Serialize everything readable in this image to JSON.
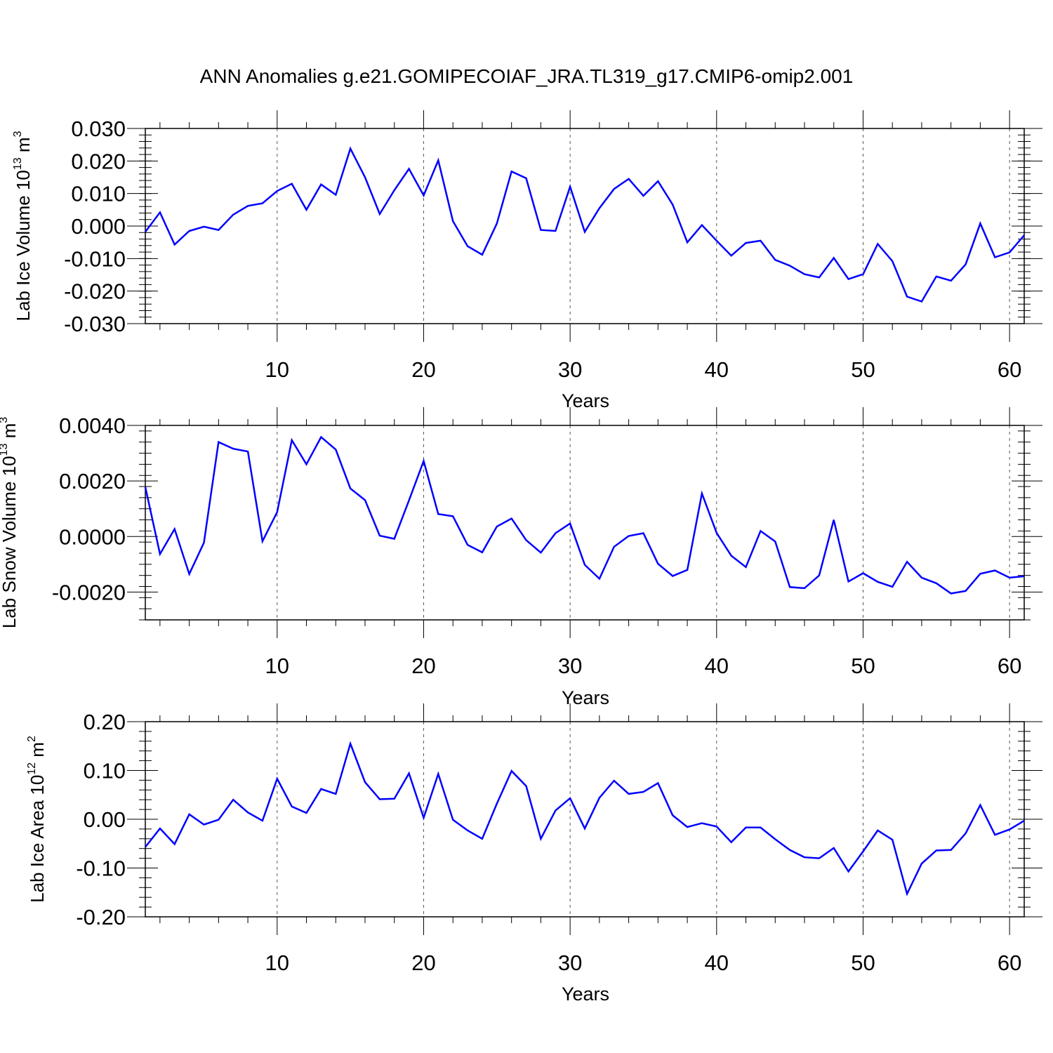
{
  "title": "ANN Anomalies g.e21.GOMIPECOIAF_JRA.TL319_g17.CMIP6-omip2.001",
  "colors": {
    "line": "#0000ff",
    "axis": "#000000",
    "grid": "#555555"
  },
  "chart_data": [
    {
      "type": "line",
      "ylabel_main": "Lab Ice Volume 10",
      "ylabel_exp": "13",
      "ylabel_unit": "m",
      "ylabel_unit_exp": "3",
      "xlabel": "Years",
      "xlim": [
        1,
        61
      ],
      "ylim": [
        -0.03,
        0.03
      ],
      "yticks": [
        -0.03,
        -0.02,
        -0.01,
        0.0,
        0.01,
        0.02,
        0.03
      ],
      "ytick_labels": [
        "-0.030",
        "-0.020",
        "-0.010",
        "0.000",
        "0.010",
        "0.020",
        "0.030"
      ],
      "xticks": [
        10,
        20,
        30,
        40,
        50,
        60
      ],
      "xtick_labels": [
        "10",
        "20",
        "30",
        "40",
        "50",
        "60"
      ],
      "grid": "dashed vertical at x ticks",
      "x": [
        1,
        2,
        3,
        4,
        5,
        6,
        7,
        8,
        9,
        10,
        11,
        12,
        13,
        14,
        15,
        16,
        17,
        18,
        19,
        20,
        21,
        22,
        23,
        24,
        25,
        26,
        27,
        28,
        29,
        30,
        31,
        32,
        33,
        34,
        35,
        36,
        37,
        38,
        39,
        40,
        41,
        42,
        43,
        44,
        45,
        46,
        47,
        48,
        49,
        50,
        51,
        52,
        53,
        54,
        55,
        56,
        57,
        58,
        59,
        60,
        61
      ],
      "series": [
        {
          "values": [
            -0.0018,
            0.0042,
            -0.0057,
            -0.0015,
            -0.0002,
            -0.0012,
            0.0035,
            0.0062,
            0.007,
            0.0108,
            0.013,
            0.005,
            0.0128,
            0.0096,
            0.0238,
            0.015,
            0.0037,
            0.011,
            0.0176,
            0.0094,
            0.0202,
            0.0015,
            -0.0062,
            -0.0088,
            0.0008,
            0.0168,
            0.0147,
            -0.0012,
            -0.0015,
            0.0121,
            -0.0018,
            0.0055,
            0.0114,
            0.0145,
            0.0093,
            0.0138,
            0.0066,
            -0.005,
            0.0003,
            -0.0045,
            -0.0091,
            -0.0052,
            -0.0045,
            -0.0104,
            -0.0122,
            -0.0148,
            -0.0158,
            -0.0098,
            -0.0163,
            -0.0148,
            -0.0055,
            -0.0108,
            -0.0217,
            -0.0232,
            -0.0155,
            -0.0168,
            -0.0118,
            0.0008,
            -0.0096,
            -0.0081,
            -0.0028
          ]
        }
      ]
    },
    {
      "type": "line",
      "ylabel_main": "Lab Snow Volume 10",
      "ylabel_exp": "13",
      "ylabel_unit": "m",
      "ylabel_unit_exp": "3",
      "xlabel": "Years",
      "xlim": [
        1,
        61
      ],
      "ylim": [
        -0.003,
        0.004
      ],
      "yticks": [
        -0.002,
        0.0,
        0.002,
        0.004
      ],
      "ytick_labels": [
        "-0.0020",
        "0.0000",
        "0.0020",
        "0.0040"
      ],
      "xticks": [
        10,
        20,
        30,
        40,
        50,
        60
      ],
      "xtick_labels": [
        "10",
        "20",
        "30",
        "40",
        "50",
        "60"
      ],
      "grid": "dashed vertical at x ticks",
      "x": [
        1,
        2,
        3,
        4,
        5,
        6,
        7,
        8,
        9,
        10,
        11,
        12,
        13,
        14,
        15,
        16,
        17,
        18,
        19,
        20,
        21,
        22,
        23,
        24,
        25,
        26,
        27,
        28,
        29,
        30,
        31,
        32,
        33,
        34,
        35,
        36,
        37,
        38,
        39,
        40,
        41,
        42,
        43,
        44,
        45,
        46,
        47,
        48,
        49,
        50,
        51,
        52,
        53,
        54,
        55,
        56,
        57,
        58,
        59,
        60,
        61
      ],
      "series": [
        {
          "values": [
            0.00178,
            -0.00063,
            0.00027,
            -0.00135,
            -0.00022,
            0.0034,
            0.00316,
            0.00306,
            -0.00017,
            0.00088,
            0.00347,
            0.0026,
            0.00358,
            0.00313,
            0.00173,
            0.00131,
            3e-05,
            -8e-05,
            0.0013,
            0.00272,
            0.00081,
            0.00073,
            -0.0003,
            -0.00057,
            0.00036,
            0.00065,
            -0.00013,
            -0.00058,
            0.00012,
            0.00047,
            -0.00102,
            -0.00152,
            -0.00037,
            2e-05,
            0.00012,
            -0.00098,
            -0.00142,
            -0.0012,
            0.00155,
            0.00013,
            -0.00069,
            -0.0011,
            0.0002,
            -0.00018,
            -0.00182,
            -0.00186,
            -0.0014,
            0.0006,
            -0.00162,
            -0.00132,
            -0.00163,
            -0.00181,
            -0.00091,
            -0.00148,
            -0.00168,
            -0.00205,
            -0.00196,
            -0.00134,
            -0.00122,
            -0.00148,
            -0.00143
          ]
        }
      ]
    },
    {
      "type": "line",
      "ylabel_main": "Lab Ice Area 10",
      "ylabel_exp": "12",
      "ylabel_unit": "m",
      "ylabel_unit_exp": "2",
      "xlabel": "Years",
      "xlim": [
        1,
        61
      ],
      "ylim": [
        -0.2,
        0.2
      ],
      "yticks": [
        -0.2,
        -0.1,
        0.0,
        0.1,
        0.2
      ],
      "ytick_labels": [
        "-0.20",
        "-0.10",
        "0.00",
        "0.10",
        "0.20"
      ],
      "xticks": [
        10,
        20,
        30,
        40,
        50,
        60
      ],
      "xtick_labels": [
        "10",
        "20",
        "30",
        "40",
        "50",
        "60"
      ],
      "grid": "dashed vertical at x ticks",
      "x": [
        1,
        2,
        3,
        4,
        5,
        6,
        7,
        8,
        9,
        10,
        11,
        12,
        13,
        14,
        15,
        16,
        17,
        18,
        19,
        20,
        21,
        22,
        23,
        24,
        25,
        26,
        27,
        28,
        29,
        30,
        31,
        32,
        33,
        34,
        35,
        36,
        37,
        38,
        39,
        40,
        41,
        42,
        43,
        44,
        45,
        46,
        47,
        48,
        49,
        50,
        51,
        52,
        53,
        54,
        55,
        56,
        57,
        58,
        59,
        60,
        61
      ],
      "series": [
        {
          "values": [
            -0.057,
            -0.019,
            -0.051,
            0.01,
            -0.011,
            -0.001,
            0.04,
            0.014,
            -0.003,
            0.083,
            0.026,
            0.013,
            0.062,
            0.052,
            0.155,
            0.076,
            0.041,
            0.042,
            0.094,
            0.003,
            0.093,
            -0.001,
            -0.023,
            -0.04,
            0.032,
            0.099,
            0.068,
            -0.04,
            0.018,
            0.043,
            -0.019,
            0.044,
            0.079,
            0.052,
            0.056,
            0.074,
            0.008,
            -0.016,
            -0.008,
            -0.015,
            -0.047,
            -0.017,
            -0.017,
            -0.041,
            -0.063,
            -0.078,
            -0.08,
            -0.059,
            -0.107,
            -0.066,
            -0.023,
            -0.042,
            -0.153,
            -0.091,
            -0.064,
            -0.063,
            -0.029,
            0.029,
            -0.032,
            -0.021,
            -0.003
          ]
        }
      ]
    }
  ]
}
